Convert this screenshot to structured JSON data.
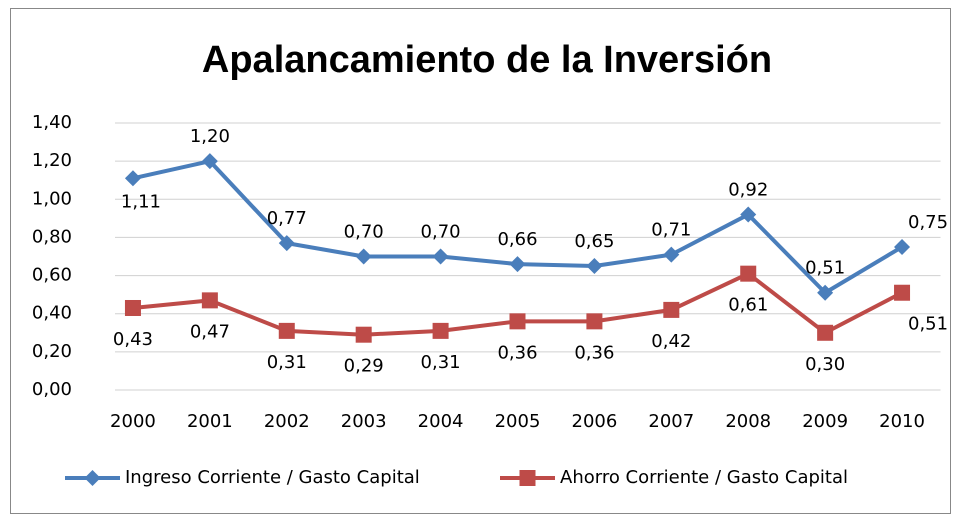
{
  "chart_data": {
    "type": "line",
    "title": "Apalancamiento de la Inversión",
    "categories": [
      "2000",
      "2001",
      "2002",
      "2003",
      "2004",
      "2005",
      "2006",
      "2007",
      "2008",
      "2009",
      "2010"
    ],
    "series": [
      {
        "name": "Ingreso Corriente / Gasto Capital",
        "color": "#4a7ebb",
        "values": [
          1.11,
          1.2,
          0.77,
          0.7,
          0.7,
          0.66,
          0.65,
          0.71,
          0.92,
          0.51,
          0.75
        ],
        "value_labels": [
          "1,11",
          "1,20",
          "0,77",
          "0,70",
          "0,70",
          "0,66",
          "0,65",
          "0,71",
          "0,92",
          "0,51",
          "0,75"
        ]
      },
      {
        "name": "Ahorro Corriente / Gasto Capital",
        "color": "#be4b48",
        "values": [
          0.43,
          0.47,
          0.31,
          0.29,
          0.31,
          0.36,
          0.36,
          0.42,
          0.61,
          0.3,
          0.51
        ],
        "value_labels": [
          "0,43",
          "0,47",
          "0,31",
          "0,29",
          "0,31",
          "0,36",
          "0,36",
          "0,42",
          "0,61",
          "0,30",
          "0,51"
        ]
      }
    ],
    "ylim": [
      0,
      1.4
    ],
    "yticks": [
      {
        "value": 0,
        "label": "0,00"
      },
      {
        "value": 0.2,
        "label": "0,20"
      },
      {
        "value": 0.4,
        "label": "0,40"
      },
      {
        "value": 0.6,
        "label": "0,60"
      },
      {
        "value": 0.8,
        "label": "0,80"
      },
      {
        "value": 1.0,
        "label": "1,00"
      },
      {
        "value": 1.2,
        "label": "1,20"
      },
      {
        "value": 1.4,
        "label": "1,40"
      }
    ],
    "grid": true,
    "legend": "bottom"
  }
}
